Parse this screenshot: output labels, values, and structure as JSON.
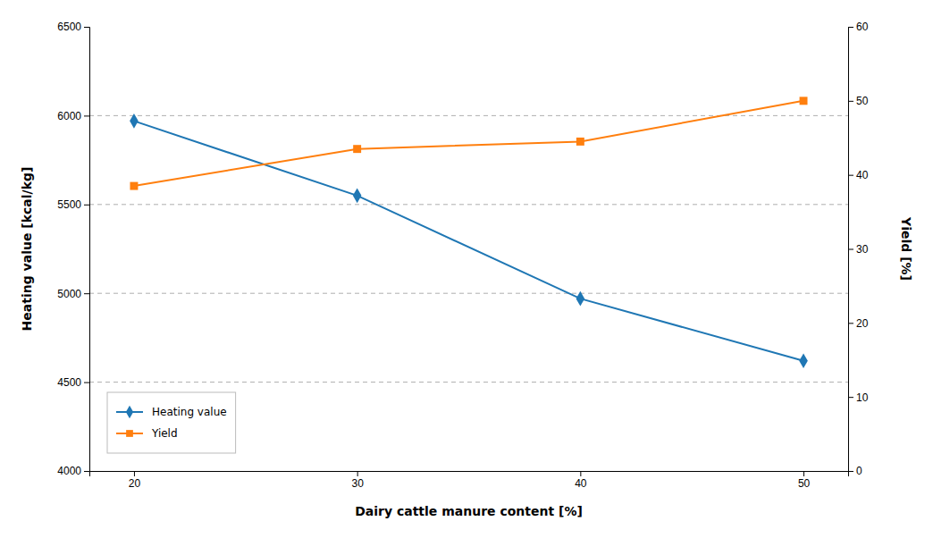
{
  "chart_data": {
    "type": "line",
    "xlabel": "Dairy cattle manure content [%]",
    "ylabel": "Heating value [kcal/kg]",
    "y2label": "Yield [%]",
    "x": [
      20,
      30,
      40,
      50
    ],
    "xlim": [
      18,
      52
    ],
    "xticks": [
      20,
      30,
      40,
      50
    ],
    "ylim": [
      4000,
      6500
    ],
    "yticks": [
      4000,
      4500,
      5000,
      5500,
      6000,
      6500
    ],
    "y2lim": [
      0,
      60
    ],
    "y2ticks": [
      0,
      10,
      20,
      30,
      40,
      50,
      60
    ],
    "grid": true,
    "legend": "lower left",
    "series": [
      {
        "name": "Heating value",
        "values": [
          5970,
          5550,
          4970,
          4620
        ],
        "marker": "diamond"
      },
      {
        "name": "Yield",
        "values": [
          38.5,
          43.5,
          44.5,
          50.0
        ],
        "marker": "square",
        "axis": "y2"
      }
    ]
  }
}
